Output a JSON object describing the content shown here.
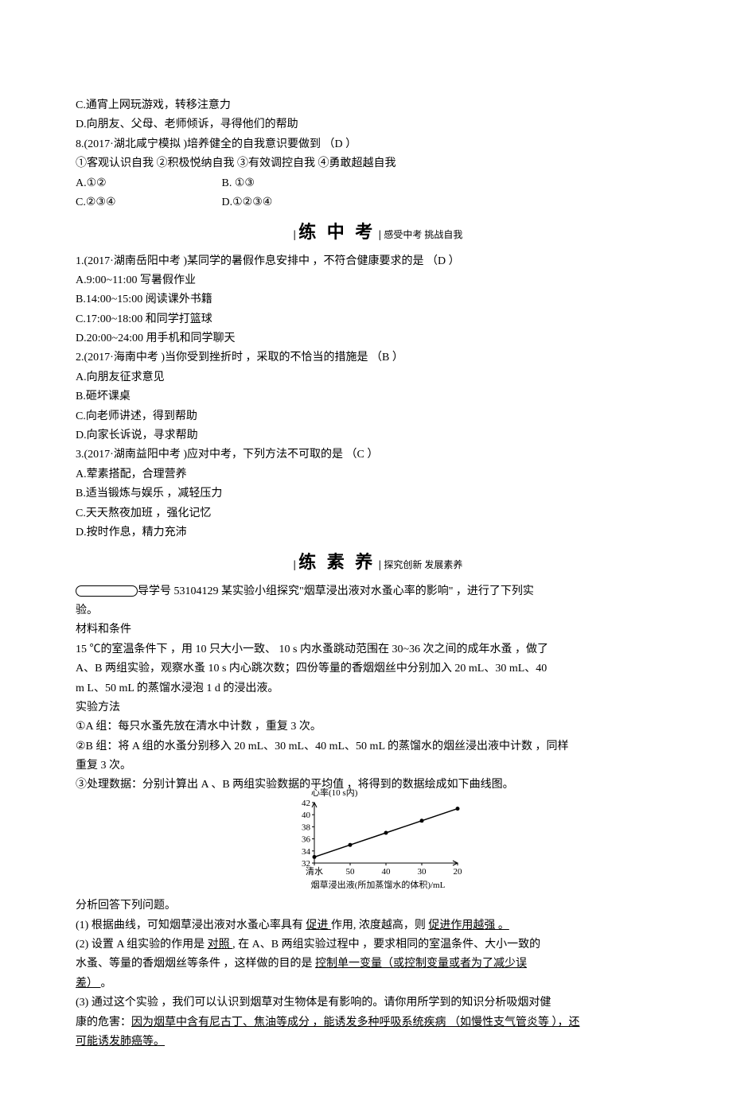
{
  "intro": {
    "line_c": "C.通宵上网玩游戏，转移注意力",
    "line_d": "D.向朋友、父母、老师倾诉，寻得他们的帮助",
    "q8_stem": "8.(2017·湖北咸宁模拟 )培养健全的自我意识要做到  （D ）",
    "q8_items": "①客观认识自我   ②积极悦纳自我   ③有效调控自我   ④勇敢超越自我",
    "q8_optA": "A.①②",
    "q8_optB": "B. ①③",
    "q8_optC": "C.②③④",
    "q8_optD": "D.①②③④"
  },
  "header1": {
    "bar": "|",
    "title": "练 中 考",
    "subtitle": "感受中考 挑战自我"
  },
  "mid": {
    "q1_stem": "1.(2017·湖南岳阳中考 )某同学的暑假作息安排中 ，不符合健康要求的是 （D ）",
    "q1_a": "A.9:00~11:00  写暑假作业",
    "q1_b": "B.14:00~15:00  阅读课外书籍",
    "q1_c": "C.17:00~18:00  和同学打篮球",
    "q1_d": "D.20:00~24:00  用手机和同学聊天",
    "q2_stem": "2.(2017·海南中考 )当你受到挫折时 ，采取的不恰当的措施是  （B ）",
    "q2_a": "A.向朋友征求意见",
    "q2_b": "B.砸坏课桌",
    "q2_c": "C.向老师讲述，得到帮助",
    "q2_d": "D.向家长诉说，寻求帮助",
    "q3_stem": "3.(2017·湖南益阳中考 )应对中考，下列方法不可取的是 （C ）",
    "q3_a": "A.荤素搭配，合理营养",
    "q3_b": "B.适当锻炼与娱乐 ，减轻压力",
    "q3_c": "C.天天熬夜加班 ，强化记忆",
    "q3_d": "D.按时作息，精力充沛"
  },
  "header2": {
    "bar": "|",
    "title": "练 素 养",
    "subtitle": "探究创新 发展素养"
  },
  "essay": {
    "lead": "导学号 53104129 某实验小组探究\"烟草浸出液对水蚤心率的影响\"  ，进行了下列实",
    "lead2": "验。",
    "mat_title": "材料和条件",
    "mat1": "15 ℃的室温条件下 ，用 10 只大小一致、 10 s 内水蚤跳动范围在  30~36 次之间的成年水蚤 ，做了",
    "mat2": "A、B 两组实验，观察水蚤 10 s 内心跳次数；四份等量的香烟烟丝中分别加入   20 mL、30 mL、40",
    "mat3": "m L、50 mL 的蒸馏水浸泡  1 d 的浸出液。",
    "method_title": "实验方法",
    "m1": "①A 组：每只水蚤先放在清水中计数  ，重复 3 次。",
    "m2": "②B 组：将 A 组的水蚤分别移入  20 mL、30 mL、40 mL、50 mL 的蒸馏水的烟丝浸出液中计数  ，同样",
    "m2b": "重复 3 次。",
    "m3": "③处理数据：分别计算出 A 、B 两组实验数据的平均值  ，将得到的数据绘成如下曲线图。"
  },
  "chart": {
    "y_label": "心率(10 s内)",
    "y_ticks": [
      "32",
      "34",
      "36",
      "38",
      "40",
      "42"
    ],
    "x_ticks": [
      "清水",
      "50",
      "40",
      "30",
      "20"
    ],
    "x_label": "烟草浸出液(所加蒸馏水的体积)/mL",
    "points": [
      {
        "x": 0,
        "y": 33
      },
      {
        "x": 1,
        "y": 35
      },
      {
        "x": 2,
        "y": 37
      },
      {
        "x": 3,
        "y": 39
      },
      {
        "x": 4,
        "y": 41
      }
    ],
    "axis_color": "#000000",
    "line_color": "#000000",
    "font_size": 11
  },
  "analysis": {
    "intro": "分析回答下列问题。",
    "p1_a": "(1) 根据曲线，可知烟草浸出液对水蚤心率具有    ",
    "p1_u1": "  促进  ",
    "p1_b": "作用, 浓度越高，则 ",
    "p1_u2": " 促进作用越强     。",
    "p2_a": "(2) 设置 A 组实验的作用是  ",
    "p2_u1": "  对照   ",
    "p2_b": ", 在 A、B 两组实验过程中 ，要求相同的室温条件、大小一致的",
    "p2_c": "水蚤、等量的香烟烟丝等条件   ，这样做的目的是   ",
    "p2_u2": "控制单一变量（或控制变量或者为了减少误    ",
    "p2_u3": "差）   ",
    "p2_d": "。",
    "p3_a": "(3) 通过这个实验 ，我们可以认识到烟草对生物体是有影响的。请你用所学到的知识分析吸烟对健",
    "p3_b": "康的危害：",
    "p3_u1": "因为烟草中含有尼古丁、焦油等成分    ，能诱发多种呼吸系统疾病  （如慢性支气管炎等 ），还",
    "p3_u2": "可能诱发肺癌等。"
  }
}
